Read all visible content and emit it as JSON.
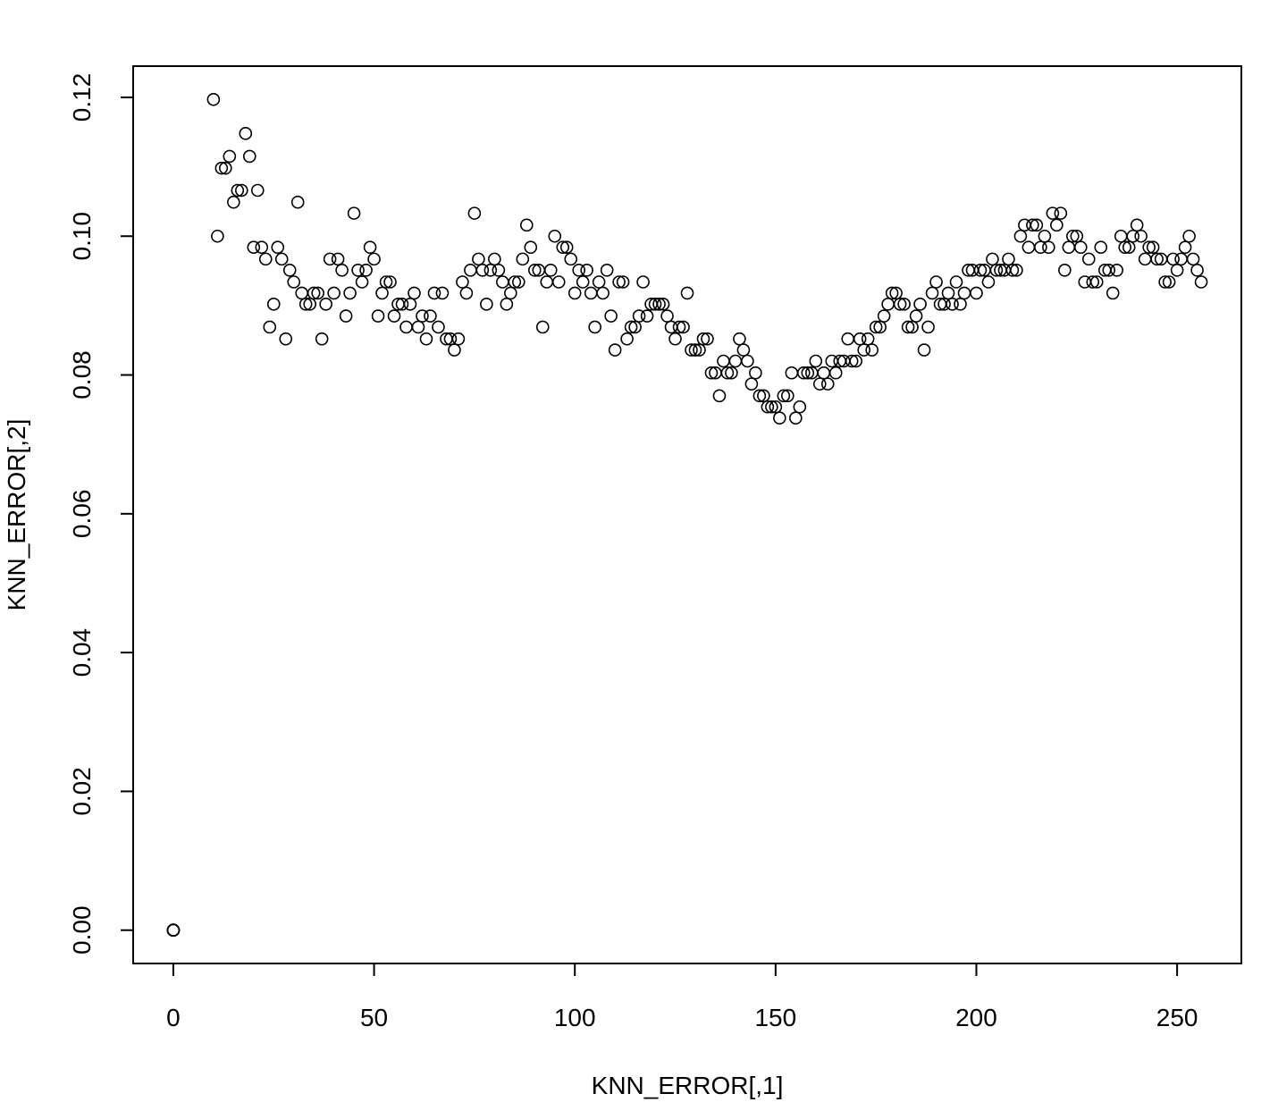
{
  "chart_data": {
    "type": "scatter",
    "title": "",
    "xlabel": "KNN_ERROR[,1]",
    "ylabel": "KNN_ERROR[,2]",
    "xlim": [
      -10,
      266
    ],
    "ylim": [
      -0.0048,
      0.1245
    ],
    "x_ticks": [
      0,
      50,
      100,
      150,
      200,
      250
    ],
    "x_tick_labels": [
      "0",
      "50",
      "100",
      "150",
      "200",
      "250"
    ],
    "y_ticks": [
      0,
      0.02,
      0.04,
      0.06,
      0.08,
      0.1,
      0.12
    ],
    "y_tick_labels": [
      "0.00",
      "0.02",
      "0.04",
      "0.06",
      "0.08",
      "0.10",
      "0.12"
    ],
    "grid": false,
    "legend": "none",
    "marker": "open-circle",
    "color": "#000000",
    "series": [
      {
        "points": [
          [
            0,
            0
          ],
          [
            0,
            0
          ],
          [
            0,
            0
          ],
          [
            0,
            0
          ],
          [
            0,
            0
          ],
          [
            0,
            0
          ],
          [
            0,
            0
          ],
          [
            0,
            0
          ],
          [
            0,
            0
          ],
          [
            10,
            0.1197
          ],
          [
            11,
            0.1
          ],
          [
            12,
            0.1098
          ],
          [
            13,
            0.1098
          ],
          [
            14,
            0.1115
          ],
          [
            15,
            0.1049
          ],
          [
            16,
            0.1066
          ],
          [
            17,
            0.1066
          ],
          [
            18,
            0.1148
          ],
          [
            19,
            0.1115
          ],
          [
            20,
            0.0984
          ],
          [
            21,
            0.1066
          ],
          [
            22,
            0.0984
          ],
          [
            23,
            0.0967
          ],
          [
            24,
            0.0869
          ],
          [
            25,
            0.0902
          ],
          [
            26,
            0.0984
          ],
          [
            27,
            0.0967
          ],
          [
            28,
            0.0852
          ],
          [
            29,
            0.0951
          ],
          [
            30,
            0.0934
          ],
          [
            31,
            0.1049
          ],
          [
            32,
            0.0918
          ],
          [
            33,
            0.0902
          ],
          [
            34,
            0.0902
          ],
          [
            35,
            0.0918
          ],
          [
            36,
            0.0918
          ],
          [
            37,
            0.0852
          ],
          [
            38,
            0.0902
          ],
          [
            39,
            0.0967
          ],
          [
            40,
            0.0918
          ],
          [
            41,
            0.0967
          ],
          [
            42,
            0.0951
          ],
          [
            43,
            0.0885
          ],
          [
            44,
            0.0918
          ],
          [
            45,
            0.1033
          ],
          [
            46,
            0.0951
          ],
          [
            47,
            0.0934
          ],
          [
            48,
            0.0951
          ],
          [
            49,
            0.0984
          ],
          [
            50,
            0.0967
          ],
          [
            51,
            0.0885
          ],
          [
            52,
            0.0918
          ],
          [
            53,
            0.0934
          ],
          [
            54,
            0.0934
          ],
          [
            55,
            0.0885
          ],
          [
            56,
            0.0902
          ],
          [
            57,
            0.0902
          ],
          [
            58,
            0.0869
          ],
          [
            59,
            0.0902
          ],
          [
            60,
            0.0918
          ],
          [
            61,
            0.0869
          ],
          [
            62,
            0.0885
          ],
          [
            63,
            0.0852
          ],
          [
            64,
            0.0885
          ],
          [
            65,
            0.0918
          ],
          [
            66,
            0.0869
          ],
          [
            67,
            0.0918
          ],
          [
            68,
            0.0852
          ],
          [
            69,
            0.0852
          ],
          [
            70,
            0.0836
          ],
          [
            71,
            0.0852
          ],
          [
            72,
            0.0934
          ],
          [
            73,
            0.0918
          ],
          [
            74,
            0.0951
          ],
          [
            75,
            0.1033
          ],
          [
            76,
            0.0967
          ],
          [
            77,
            0.0951
          ],
          [
            78,
            0.0902
          ],
          [
            79,
            0.0951
          ],
          [
            80,
            0.0967
          ],
          [
            81,
            0.0951
          ],
          [
            82,
            0.0934
          ],
          [
            83,
            0.0902
          ],
          [
            84,
            0.0918
          ],
          [
            85,
            0.0934
          ],
          [
            86,
            0.0934
          ],
          [
            87,
            0.0967
          ],
          [
            88,
            0.1016
          ],
          [
            89,
            0.0984
          ],
          [
            90,
            0.0951
          ],
          [
            91,
            0.0951
          ],
          [
            92,
            0.0869
          ],
          [
            93,
            0.0934
          ],
          [
            94,
            0.0951
          ],
          [
            95,
            0.1
          ],
          [
            96,
            0.0934
          ],
          [
            97,
            0.0984
          ],
          [
            98,
            0.0984
          ],
          [
            99,
            0.0967
          ],
          [
            100,
            0.0918
          ],
          [
            101,
            0.0951
          ],
          [
            102,
            0.0934
          ],
          [
            103,
            0.0951
          ],
          [
            104,
            0.0918
          ],
          [
            105,
            0.0869
          ],
          [
            106,
            0.0934
          ],
          [
            107,
            0.0918
          ],
          [
            108,
            0.0951
          ],
          [
            109,
            0.0885
          ],
          [
            110,
            0.0836
          ],
          [
            111,
            0.0934
          ],
          [
            112,
            0.0934
          ],
          [
            113,
            0.0852
          ],
          [
            114,
            0.0869
          ],
          [
            115,
            0.0869
          ],
          [
            116,
            0.0885
          ],
          [
            117,
            0.0934
          ],
          [
            118,
            0.0885
          ],
          [
            119,
            0.0902
          ],
          [
            120,
            0.0902
          ],
          [
            121,
            0.0902
          ],
          [
            122,
            0.0902
          ],
          [
            123,
            0.0885
          ],
          [
            124,
            0.0869
          ],
          [
            125,
            0.0852
          ],
          [
            126,
            0.0869
          ],
          [
            127,
            0.0869
          ],
          [
            128,
            0.0918
          ],
          [
            129,
            0.0836
          ],
          [
            130,
            0.0836
          ],
          [
            131,
            0.0836
          ],
          [
            132,
            0.0852
          ],
          [
            133,
            0.0852
          ],
          [
            134,
            0.0803
          ],
          [
            135,
            0.0803
          ],
          [
            136,
            0.077
          ],
          [
            137,
            0.082
          ],
          [
            138,
            0.0803
          ],
          [
            139,
            0.0803
          ],
          [
            140,
            0.082
          ],
          [
            141,
            0.0852
          ],
          [
            142,
            0.0836
          ],
          [
            143,
            0.082
          ],
          [
            144,
            0.0787
          ],
          [
            145,
            0.0803
          ],
          [
            146,
            0.077
          ],
          [
            147,
            0.077
          ],
          [
            148,
            0.0754
          ],
          [
            149,
            0.0754
          ],
          [
            150,
            0.0754
          ],
          [
            151,
            0.0738
          ],
          [
            152,
            0.077
          ],
          [
            153,
            0.077
          ],
          [
            154,
            0.0803
          ],
          [
            155,
            0.0738
          ],
          [
            156,
            0.0754
          ],
          [
            157,
            0.0803
          ],
          [
            158,
            0.0803
          ],
          [
            159,
            0.0803
          ],
          [
            160,
            0.082
          ],
          [
            161,
            0.0787
          ],
          [
            162,
            0.0803
          ],
          [
            163,
            0.0787
          ],
          [
            164,
            0.082
          ],
          [
            165,
            0.0803
          ],
          [
            166,
            0.082
          ],
          [
            167,
            0.082
          ],
          [
            168,
            0.0852
          ],
          [
            169,
            0.082
          ],
          [
            170,
            0.082
          ],
          [
            171,
            0.0852
          ],
          [
            172,
            0.0836
          ],
          [
            173,
            0.0852
          ],
          [
            174,
            0.0836
          ],
          [
            175,
            0.0869
          ],
          [
            176,
            0.0869
          ],
          [
            177,
            0.0885
          ],
          [
            178,
            0.0902
          ],
          [
            179,
            0.0918
          ],
          [
            180,
            0.0918
          ],
          [
            181,
            0.0902
          ],
          [
            182,
            0.0902
          ],
          [
            183,
            0.0869
          ],
          [
            184,
            0.0869
          ],
          [
            185,
            0.0885
          ],
          [
            186,
            0.0902
          ],
          [
            187,
            0.0836
          ],
          [
            188,
            0.0869
          ],
          [
            189,
            0.0918
          ],
          [
            190,
            0.0934
          ],
          [
            191,
            0.0902
          ],
          [
            192,
            0.0902
          ],
          [
            193,
            0.0918
          ],
          [
            194,
            0.0902
          ],
          [
            195,
            0.0934
          ],
          [
            196,
            0.0902
          ],
          [
            197,
            0.0918
          ],
          [
            198,
            0.0951
          ],
          [
            199,
            0.0951
          ],
          [
            200,
            0.0918
          ],
          [
            201,
            0.0951
          ],
          [
            202,
            0.0951
          ],
          [
            203,
            0.0934
          ],
          [
            204,
            0.0967
          ],
          [
            205,
            0.0951
          ],
          [
            206,
            0.0951
          ],
          [
            207,
            0.0951
          ],
          [
            208,
            0.0967
          ],
          [
            209,
            0.0951
          ],
          [
            210,
            0.0951
          ],
          [
            211,
            0.1
          ],
          [
            212,
            0.1016
          ],
          [
            213,
            0.0984
          ],
          [
            214,
            0.1016
          ],
          [
            215,
            0.1016
          ],
          [
            216,
            0.0984
          ],
          [
            217,
            0.1
          ],
          [
            218,
            0.0984
          ],
          [
            219,
            0.1033
          ],
          [
            220,
            0.1016
          ],
          [
            221,
            0.1033
          ],
          [
            222,
            0.0951
          ],
          [
            223,
            0.0984
          ],
          [
            224,
            0.1
          ],
          [
            225,
            0.1
          ],
          [
            226,
            0.0984
          ],
          [
            227,
            0.0934
          ],
          [
            228,
            0.0967
          ],
          [
            229,
            0.0934
          ],
          [
            230,
            0.0934
          ],
          [
            231,
            0.0984
          ],
          [
            232,
            0.0951
          ],
          [
            233,
            0.0951
          ],
          [
            234,
            0.0918
          ],
          [
            235,
            0.0951
          ],
          [
            236,
            0.1
          ],
          [
            237,
            0.0984
          ],
          [
            238,
            0.0984
          ],
          [
            239,
            0.1
          ],
          [
            240,
            0.1016
          ],
          [
            241,
            0.1
          ],
          [
            242,
            0.0967
          ],
          [
            243,
            0.0984
          ],
          [
            244,
            0.0984
          ],
          [
            245,
            0.0967
          ],
          [
            246,
            0.0967
          ],
          [
            247,
            0.0934
          ],
          [
            248,
            0.0934
          ],
          [
            249,
            0.0967
          ],
          [
            250,
            0.0951
          ],
          [
            251,
            0.0967
          ],
          [
            252,
            0.0984
          ],
          [
            253,
            0.1
          ],
          [
            254,
            0.0967
          ],
          [
            255,
            0.0951
          ],
          [
            256,
            0.0934
          ]
        ]
      }
    ]
  }
}
